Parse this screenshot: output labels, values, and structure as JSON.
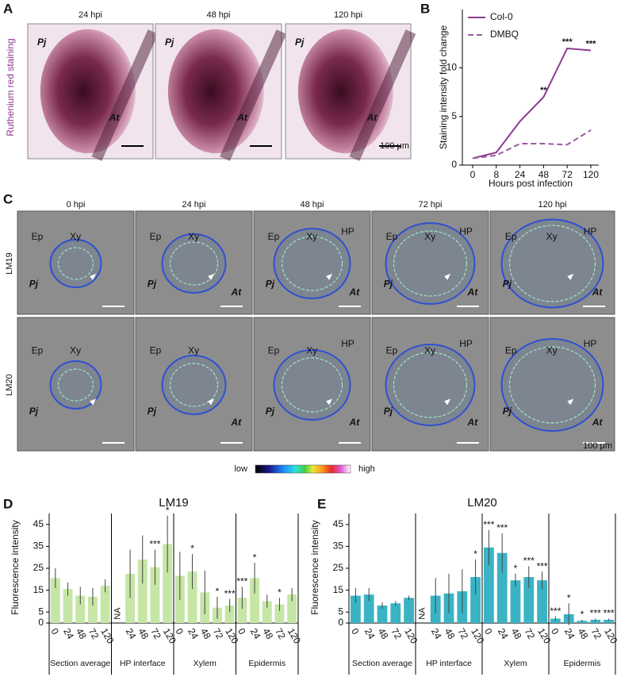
{
  "panel_labels": [
    "A",
    "B",
    "C",
    "D",
    "E"
  ],
  "panel_a": {
    "ylabel": "Ruthenium red staining",
    "images": [
      {
        "title": "24 hpi",
        "labels": {
          "pj": "Pj",
          "at": "At"
        }
      },
      {
        "title": "48 hpi",
        "labels": {
          "pj": "Pj",
          "at": "At"
        }
      },
      {
        "title": "120 hpi",
        "labels": {
          "pj": "Pj",
          "at": "At"
        }
      }
    ],
    "scale": "100 μm"
  },
  "panel_c": {
    "titles": [
      "0 hpi",
      "24 hpi",
      "48 hpi",
      "72 hpi",
      "120 hpi"
    ],
    "rows": [
      {
        "name": "LM19",
        "images": [
          {
            "ep": "Ep",
            "xy": "Xy",
            "pj": "Pj"
          },
          {
            "ep": "Ep",
            "xy": "Xy",
            "pj": "Pj",
            "at": "At"
          },
          {
            "ep": "Ep",
            "xy": "Xy",
            "hp": "HP",
            "pj": "Pj",
            "at": "At"
          },
          {
            "ep": "Ep",
            "xy": "Xy",
            "hp": "HP",
            "pj": "Pj",
            "at": "At"
          },
          {
            "ep": "Ep",
            "xy": "Xy",
            "hp": "HP",
            "pj": "Pj",
            "at": "At"
          }
        ]
      },
      {
        "name": "LM20",
        "images": [
          {
            "ep": "Ep",
            "xy": "Xy",
            "pj": "Pj"
          },
          {
            "ep": "Ep",
            "xy": "Xy",
            "pj": "Pj",
            "at": "At"
          },
          {
            "ep": "Ep",
            "xy": "Xy",
            "hp": "HP",
            "pj": "Pj",
            "at": "At"
          },
          {
            "ep": "Ep",
            "xy": "Xy",
            "hp": "HP",
            "pj": "Pj",
            "at": "At"
          },
          {
            "ep": "Ep",
            "xy": "Xy",
            "hp": "HP",
            "pj": "Pj",
            "at": "At"
          }
        ]
      }
    ],
    "scale": "100 μm",
    "colorbar": {
      "low": "low",
      "high": "high"
    }
  },
  "chart_data": [
    {
      "type": "line",
      "categories": [
        "0",
        "8",
        "24",
        "48",
        "72",
        "120"
      ],
      "series": [
        {
          "name": "Col-0",
          "color": "#8b3a8f",
          "style": "solid",
          "values": [
            0.7,
            1.3,
            4.5,
            7,
            12,
            11.8
          ],
          "significance": [
            null,
            null,
            null,
            "**",
            "***",
            "***"
          ]
        },
        {
          "name": "DMBQ",
          "color": "#9b5aa0",
          "style": "dashed",
          "values": [
            0.7,
            1,
            2.2,
            2.2,
            2.1,
            3.6
          ]
        }
      ],
      "ylim": [
        0,
        16
      ],
      "yticks": [
        0,
        5,
        10
      ],
      "xlabel": "Hours post infection",
      "ylabel": "Staining intensity fold change",
      "legend": "upper left"
    },
    {
      "type": "grouped-bar",
      "title": "LM19",
      "color": "#c6e6a6",
      "ylabel": "Fluorescence intensity",
      "ylim": [
        0,
        50
      ],
      "yticks": [
        0,
        5,
        15,
        25,
        35,
        45
      ],
      "groups": [
        {
          "name": "Section average",
          "categories": [
            "0",
            "24",
            "48",
            "72",
            "120"
          ],
          "values": [
            20.5,
            15.5,
            12.5,
            12,
            17
          ],
          "errors": [
            4.5,
            3,
            4,
            4,
            3
          ],
          "significance": [
            null,
            null,
            null,
            null,
            null
          ]
        },
        {
          "name": "HP interface",
          "categories": [
            null,
            "24",
            "48",
            "72",
            "120"
          ],
          "values": [
            null,
            22.5,
            29,
            25.5,
            36
          ],
          "errors": [
            null,
            11,
            11,
            8,
            13
          ],
          "significance": [
            null,
            null,
            null,
            "***",
            "*"
          ],
          "value_labels": [
            "NA",
            null,
            null,
            null,
            null
          ]
        },
        {
          "name": "Xylem",
          "categories": [
            "0",
            "24",
            "48",
            "72",
            "120"
          ],
          "values": [
            21.5,
            23.5,
            14,
            7,
            8
          ],
          "errors": [
            11,
            8,
            10,
            5,
            3
          ],
          "significance": [
            null,
            "*",
            null,
            "*",
            "***"
          ]
        },
        {
          "name": "Epidermis",
          "categories": [
            "0",
            "24",
            "48",
            "72",
            "120"
          ],
          "values": [
            11.5,
            20.5,
            10,
            8.5,
            13
          ],
          "errors": [
            5,
            7,
            3,
            3,
            3
          ],
          "significance": [
            "***",
            "*",
            null,
            "*",
            null
          ]
        }
      ]
    },
    {
      "type": "grouped-bar",
      "title": "LM20",
      "color": "#3ab3c4",
      "ylabel": "Fluorescence intensity",
      "ylim": [
        0,
        50
      ],
      "yticks": [
        0,
        5,
        15,
        25,
        35,
        45
      ],
      "groups": [
        {
          "name": "Section average",
          "categories": [
            "0",
            "24",
            "48",
            "72",
            "120"
          ],
          "values": [
            12.5,
            13,
            8,
            9,
            11.5
          ],
          "errors": [
            3.5,
            3,
            1.5,
            1,
            1
          ],
          "significance": [
            null,
            null,
            null,
            null,
            null
          ]
        },
        {
          "name": "HP interface",
          "categories": [
            null,
            "24",
            "48",
            "72",
            "120"
          ],
          "values": [
            null,
            12.5,
            13.5,
            14.5,
            21
          ],
          "errors": [
            null,
            8,
            9,
            10,
            8
          ],
          "significance": [
            null,
            null,
            null,
            null,
            "*"
          ],
          "value_labels": [
            "NA",
            null,
            null,
            null,
            null
          ]
        },
        {
          "name": "Xylem",
          "categories": [
            "0",
            "24",
            "48",
            "72",
            "120"
          ],
          "values": [
            34.5,
            32,
            19.5,
            21,
            19.5
          ],
          "errors": [
            8,
            9,
            3,
            5,
            4
          ],
          "significance": [
            "***",
            "***",
            "*",
            "***",
            "***"
          ]
        },
        {
          "name": "Epidermis",
          "categories": [
            "0",
            "24",
            "48",
            "72",
            "120"
          ],
          "values": [
            2,
            4,
            1,
            1.5,
            1.5
          ],
          "errors": [
            1,
            5,
            0.5,
            0.5,
            0.5
          ],
          "significance": [
            "***",
            "*",
            "*",
            "***",
            "***"
          ]
        }
      ]
    }
  ]
}
